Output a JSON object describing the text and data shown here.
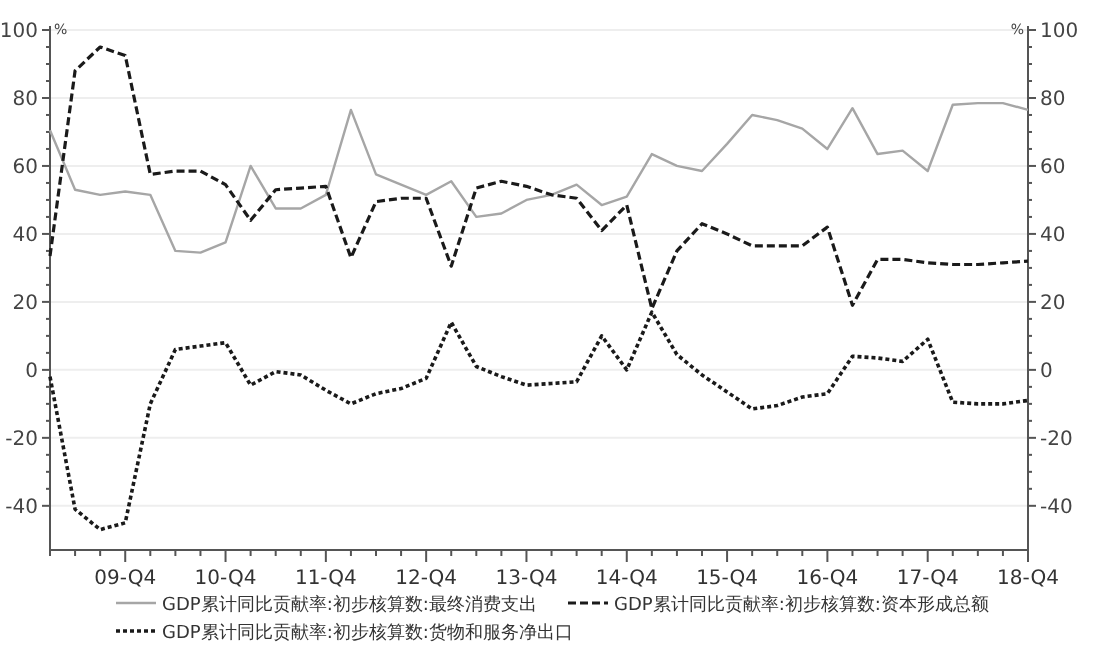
{
  "chart_data": {
    "type": "line",
    "ylabel": "%",
    "y2label": "%",
    "categories": [
      null,
      null,
      null,
      "09-Q4",
      null,
      null,
      null,
      "10-Q4",
      null,
      null,
      null,
      "11-Q4",
      null,
      null,
      null,
      "12-Q4",
      null,
      null,
      null,
      "13-Q4",
      null,
      null,
      null,
      "14-Q4",
      null,
      null,
      null,
      "15-Q4",
      null,
      null,
      null,
      "16-Q4",
      null,
      null,
      null,
      "17-Q4",
      null,
      null,
      null,
      "18-Q4"
    ],
    "series": [
      {
        "name": "GDP累计同比贡献率:初步核算数:最终消费支出",
        "color": "#a6a6a6",
        "line_style": "solid",
        "values": [
          70.5,
          53,
          51.5,
          52.5,
          51.5,
          35,
          34.5,
          37.5,
          60,
          47.5,
          47.5,
          51.5,
          76.5,
          57.5,
          54.5,
          51.5,
          55.5,
          45,
          46,
          50,
          51.5,
          54.5,
          48.5,
          51,
          63.5,
          60,
          58.5,
          66.5,
          75,
          73.5,
          71,
          65,
          77,
          63.5,
          64.5,
          58.5,
          78,
          78.5,
          78.5,
          76.5
        ]
      },
      {
        "name": "GDP累计同比贡献率:初步核算数:资本形成总额",
        "color": "#1a1a1a",
        "line_style": "dashed",
        "values": [
          33.5,
          88,
          95,
          92.5,
          57.5,
          58.5,
          58.5,
          54.5,
          44,
          53,
          53.5,
          54,
          33,
          49.5,
          50.5,
          50.5,
          30.5,
          53.5,
          55.5,
          54,
          51.5,
          50.5,
          41,
          48.5,
          18,
          35,
          43,
          40,
          36.5,
          36.5,
          36.5,
          42,
          19,
          32.5,
          32.5,
          31.5,
          31,
          31,
          31.5,
          32
        ]
      },
      {
        "name": "GDP累计同比贡献率:初步核算数:货物和服务净出口",
        "color": "#1a1a1a",
        "line_style": "dotted",
        "values": [
          -2,
          -41,
          -47,
          -45,
          -10,
          6,
          7,
          8,
          -4.5,
          -0.5,
          -1.5,
          -6,
          -10,
          -7,
          -5.5,
          -2.5,
          14,
          1,
          -2,
          -4.5,
          -4,
          -3.5,
          10,
          0,
          17,
          4.5,
          -1.5,
          -6.5,
          -11.5,
          -10.5,
          -8,
          -7,
          4,
          3.5,
          2.5,
          9,
          -9.5,
          -10,
          -10,
          -9
        ]
      }
    ],
    "ylim": [
      -53,
      100
    ],
    "yticks": [
      -40,
      -20,
      0,
      20,
      40,
      60,
      80,
      100
    ],
    "y2lim": [
      -53,
      100
    ],
    "y2ticks": [
      -40,
      -20,
      0,
      20,
      40,
      60,
      80,
      100
    ],
    "grid": "y",
    "legend": "bottom"
  }
}
